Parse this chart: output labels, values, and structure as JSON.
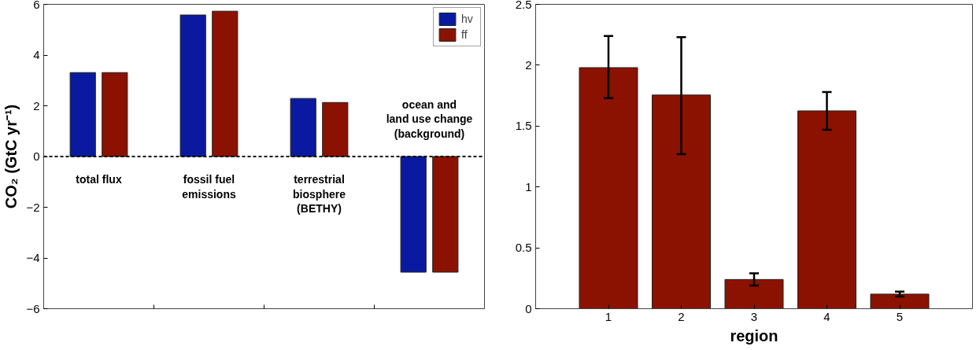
{
  "chart_data": [
    {
      "type": "bar",
      "ylabel": "CO₂ (GtC yr⁻¹)",
      "categories": [
        "total flux",
        "fossil fuel\nemissions",
        "terrestrial\nbiosphere\n(BETHY)",
        "ocean and\nland use change\n(background)"
      ],
      "series": [
        {
          "name": "hv",
          "color": "#0a1aa0",
          "values": [
            3.31,
            5.58,
            2.29,
            -4.56
          ]
        },
        {
          "name": "ff",
          "color": "#8b1200",
          "values": [
            3.31,
            5.73,
            2.13,
            -4.56
          ]
        }
      ],
      "ylim": [
        -6,
        6
      ],
      "yticks": [
        -6,
        -4,
        -2,
        0,
        2,
        4,
        6
      ],
      "ref_lines": [
        {
          "axis": "y",
          "value": 0,
          "line_style": "dashed",
          "color": "#000000"
        }
      ],
      "grid": false,
      "legend": "top right"
    },
    {
      "type": "bar",
      "xlabel": "region",
      "categories": [
        "1",
        "2",
        "3",
        "4",
        "5"
      ],
      "values": [
        1.98,
        1.755,
        0.24,
        1.625,
        0.12
      ],
      "color": "#8b1200",
      "errors": [
        [
          1.73,
          2.24
        ],
        [
          1.27,
          2.23
        ],
        [
          0.19,
          0.29
        ],
        [
          1.47,
          1.78
        ],
        [
          0.1,
          0.14
        ]
      ],
      "ylim": [
        0,
        2.5
      ],
      "yticks": [
        0,
        0.5,
        1,
        1.5,
        2,
        2.5
      ],
      "grid": false
    }
  ]
}
